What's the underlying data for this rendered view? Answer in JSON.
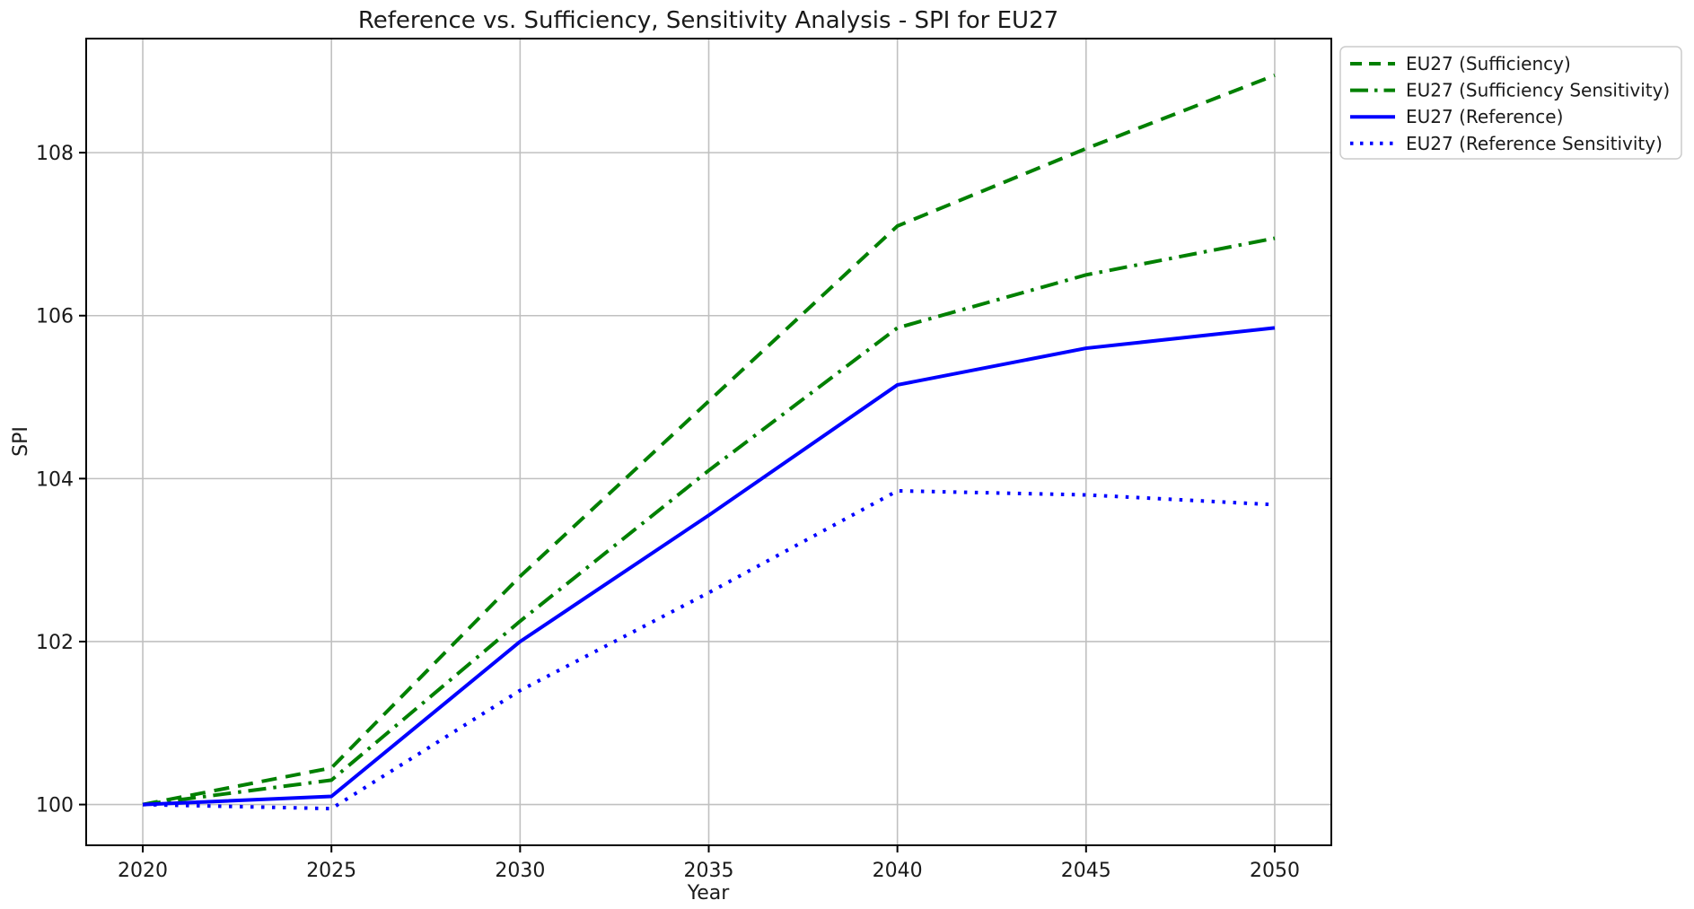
{
  "chart_data": {
    "type": "line",
    "title": "Reference vs. Sufficiency, Sensitivity Analysis - SPI for EU27",
    "xlabel": "Year",
    "ylabel": "SPI",
    "x": [
      2020,
      2025,
      2030,
      2035,
      2040,
      2045,
      2050
    ],
    "series": [
      {
        "name": "EU27 (Sufficiency)",
        "color": "#008000",
        "style": "dashed",
        "values": [
          100.0,
          100.45,
          102.8,
          104.95,
          107.1,
          108.05,
          108.95
        ]
      },
      {
        "name": "EU27 (Sufficiency Sensitivity)",
        "color": "#008000",
        "style": "dashdot",
        "values": [
          100.0,
          100.3,
          102.25,
          104.1,
          105.85,
          106.5,
          106.95
        ]
      },
      {
        "name": "EU27 (Reference)",
        "color": "#0000ff",
        "style": "solid",
        "values": [
          100.0,
          100.1,
          102.0,
          103.55,
          105.15,
          105.6,
          105.85
        ]
      },
      {
        "name": "EU27 (Reference Sensitivity)",
        "color": "#0000ff",
        "style": "dotted",
        "values": [
          100.0,
          99.95,
          101.4,
          102.6,
          103.85,
          103.8,
          103.68
        ]
      }
    ],
    "xticks": [
      2020,
      2025,
      2030,
      2035,
      2040,
      2045,
      2050
    ],
    "yticks": [
      100,
      102,
      104,
      106,
      108
    ],
    "xlim": [
      2018.5,
      2051.5
    ],
    "ylim": [
      99.5,
      109.4
    ],
    "grid": true,
    "grid_color": "#c0c0c0",
    "spine_color": "#000000",
    "legend_position": "upper-right-outside"
  }
}
